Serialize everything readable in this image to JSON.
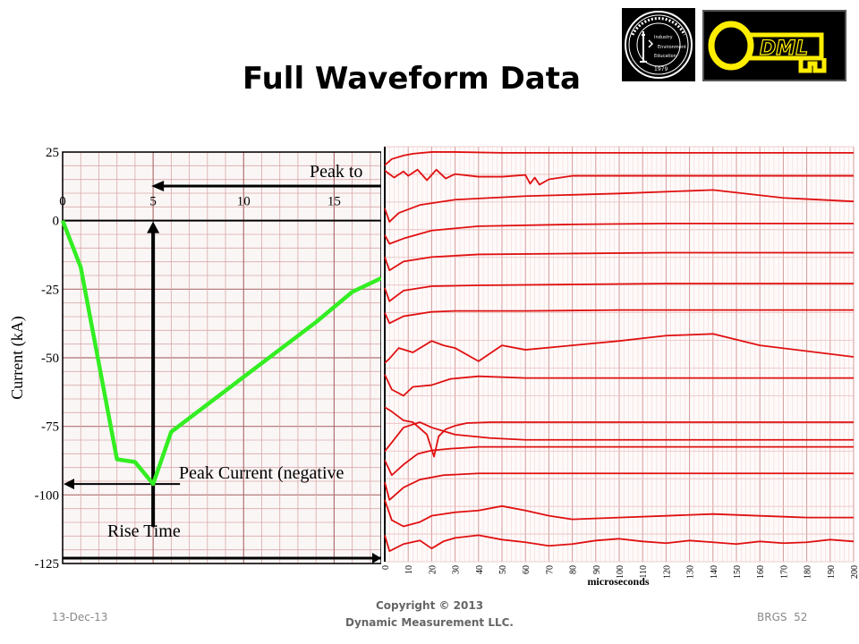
{
  "slide": {
    "title": "Full Waveform Data",
    "footer": {
      "date": "13-Dec-13",
      "copyright_line1": "Copyright © 2013",
      "copyright_line2": "Dynamic Measurement LLC.",
      "slide_label": "BRGS",
      "slide_number": "52"
    },
    "logos": {
      "seal_text": [
        "Industry",
        "Environment",
        "Education",
        "1979"
      ],
      "dml_text": "DML"
    }
  },
  "chart_data": [
    {
      "type": "line",
      "ylabel": "Current (kA)",
      "y_ticks": [
        "25",
        "0",
        "-25",
        "-50",
        "-75",
        "-100",
        "-125"
      ],
      "x_ticks": [
        "0",
        "5",
        "10",
        "15"
      ],
      "ylim": [
        -125,
        25
      ],
      "xlim": [
        0,
        17.6
      ],
      "annotations": [
        "Peak to",
        "Peak Current (negative",
        "Rise Time"
      ],
      "series": [
        {
          "color": "#33ee22",
          "x": [
            0,
            1,
            3,
            4,
            5,
            6,
            10,
            14,
            16,
            17.6
          ],
          "y": [
            0,
            -17,
            -87,
            -88,
            -96,
            -77,
            -57,
            -37,
            -26,
            -21
          ]
        }
      ],
      "grid": true
    },
    {
      "type": "line",
      "xlabel": "microseconds",
      "x_ticks": [
        "0",
        "10",
        "20",
        "30",
        "40",
        "50",
        "60",
        "70",
        "80",
        "90",
        "100",
        "110",
        "120",
        "130",
        "140",
        "150",
        "160",
        "170",
        "180",
        "190",
        "200"
      ],
      "xlim": [
        0,
        200
      ],
      "grid": true,
      "series_color": "#e01010",
      "series": [
        {
          "x": [
            0,
            3,
            8,
            12,
            20,
            30,
            50,
            100,
            200
          ],
          "y": [
            -21,
            -14,
            -10,
            -8,
            -6,
            -6,
            -7,
            -7,
            -7
          ]
        },
        {
          "x": [
            0,
            4,
            8,
            10,
            14,
            18,
            22,
            26,
            30,
            40,
            50,
            60,
            62,
            64,
            66,
            70,
            80,
            90,
            100,
            120,
            130,
            140,
            150,
            160,
            170,
            180,
            190,
            200
          ],
          "y": [
            -27,
            -35,
            -28,
            -33,
            -26,
            -38,
            -26,
            -36,
            -31,
            -34,
            -34,
            -32,
            -42,
            -35,
            -43,
            -37,
            -33,
            -33,
            -33,
            -33,
            -33,
            -33,
            -33,
            -33,
            -33,
            -33,
            -33,
            -33
          ]
        },
        {
          "x": [
            0,
            2,
            6,
            15,
            30,
            60,
            100,
            140,
            170,
            200
          ],
          "y": [
            -70,
            -85,
            -75,
            -66,
            -60,
            -56,
            -53,
            -49,
            -58,
            -62
          ]
        },
        {
          "x": [
            0,
            2,
            8,
            20,
            40,
            80,
            120,
            200
          ],
          "y": [
            -100,
            -110,
            -104,
            -95,
            -90,
            -88,
            -87,
            -87
          ]
        },
        {
          "x": [
            0,
            2,
            8,
            20,
            40,
            80,
            120,
            200
          ],
          "y": [
            -125,
            -140,
            -130,
            -125,
            -122,
            -121,
            -120,
            -120
          ]
        },
        {
          "x": [
            0,
            2,
            8,
            20,
            40,
            80,
            120,
            200
          ],
          "y": [
            -160,
            -175,
            -163,
            -158,
            -157,
            -156,
            -155,
            -155
          ]
        },
        {
          "x": [
            0,
            2,
            8,
            20,
            30,
            60,
            100,
            200
          ],
          "y": [
            -188,
            -200,
            -192,
            -187,
            -186,
            -186,
            -185,
            -185
          ]
        },
        {
          "x": [
            0,
            2,
            6,
            12,
            20,
            25,
            30,
            40,
            50,
            60,
            80,
            100,
            120,
            140,
            160,
            200
          ],
          "y": [
            -245,
            -240,
            -228,
            -233,
            -220,
            -225,
            -228,
            -243,
            -225,
            -230,
            -225,
            -220,
            -214,
            -212,
            -225,
            -238
          ]
        },
        {
          "x": [
            0,
            3,
            8,
            12,
            20,
            28,
            40,
            60,
            70,
            80,
            100,
            120,
            140,
            160,
            200
          ],
          "y": [
            -258,
            -275,
            -282,
            -272,
            -270,
            -263,
            -260,
            -262,
            -262,
            -262,
            -262,
            -262,
            -262,
            -262,
            -262
          ]
        },
        {
          "x": [
            0,
            3,
            8,
            12,
            18,
            21,
            23,
            26,
            30,
            35,
            45,
            60,
            80,
            100,
            140,
            200
          ],
          "y": [
            -295,
            -300,
            -310,
            -312,
            -326,
            -351,
            -328,
            -320,
            -316,
            -313,
            -312,
            -312,
            -312,
            -312,
            -312,
            -312
          ]
        },
        {
          "x": [
            0,
            3,
            8,
            15,
            20,
            25,
            30,
            45,
            60,
            80,
            100,
            200
          ],
          "y": [
            -345,
            -335,
            -318,
            -312,
            -318,
            -322,
            -326,
            -330,
            -332,
            -332,
            -332,
            -332
          ]
        },
        {
          "x": [
            0,
            3,
            8,
            14,
            20,
            28,
            40,
            60,
            100,
            200
          ],
          "y": [
            -355,
            -372,
            -360,
            -348,
            -344,
            -342,
            -340,
            -340,
            -340,
            -340
          ]
        },
        {
          "x": [
            0,
            2,
            8,
            15,
            25,
            40,
            60,
            100,
            140,
            200
          ],
          "y": [
            -380,
            -400,
            -386,
            -377,
            -372,
            -370,
            -370,
            -370,
            -370,
            -370
          ]
        },
        {
          "x": [
            0,
            3,
            8,
            15,
            20,
            30,
            40,
            50,
            60,
            70,
            80,
            100,
            120,
            140,
            160,
            180,
            200
          ],
          "y": [
            -400,
            -423,
            -430,
            -425,
            -418,
            -414,
            -412,
            -407,
            -412,
            -418,
            -422,
            -420,
            -418,
            -416,
            -418,
            -420,
            -420
          ]
        },
        {
          "x": [
            0,
            2,
            8,
            15,
            20,
            25,
            30,
            40,
            50,
            60,
            70,
            80,
            90,
            100,
            110,
            120,
            130,
            140,
            150,
            160,
            170,
            180,
            190,
            200
          ],
          "y": [
            -440,
            -458,
            -450,
            -446,
            -455,
            -447,
            -443,
            -440,
            -445,
            -448,
            -452,
            -450,
            -446,
            -444,
            -447,
            -449,
            -446,
            -448,
            -450,
            -447,
            -449,
            -448,
            -445,
            -447
          ]
        }
      ]
    }
  ]
}
